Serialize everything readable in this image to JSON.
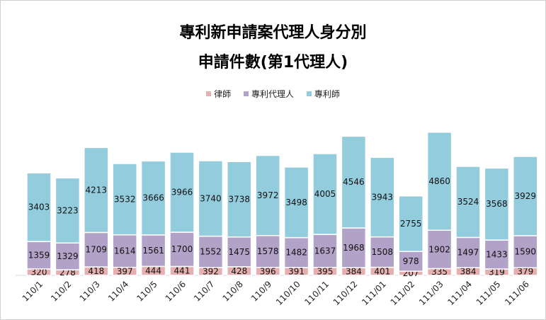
{
  "title_line1": "專利新申請案代理人身分別",
  "title_line2": "申請件數(第1代理人)",
  "colors": {
    "律師": "#e6b0b0",
    "專利代理人": "#b3a2c7",
    "專利師": "#93cddd"
  },
  "legend": [
    {
      "name": "律師",
      "color": "#e6b0b0"
    },
    {
      "name": "專利代理人",
      "color": "#b3a2c7"
    },
    {
      "name": "專利師",
      "color": "#93cddd"
    }
  ],
  "chart_data": {
    "type": "bar",
    "stacked": true,
    "title": "專利新申請案代理人身分別 申請件數(第1代理人)",
    "categories": [
      "110/1",
      "110/2",
      "110/3",
      "110/4",
      "110/5",
      "110/6",
      "110/7",
      "110/8",
      "110/9",
      "110/10",
      "110/11",
      "110/12",
      "111/01",
      "111/02",
      "111/03",
      "111/04",
      "111/05",
      "111/06"
    ],
    "series": [
      {
        "name": "律師",
        "values": [
          320,
          278,
          418,
          397,
          444,
          441,
          392,
          428,
          396,
          391,
          395,
          384,
          401,
          207,
          335,
          384,
          319,
          379
        ]
      },
      {
        "name": "專利代理人",
        "values": [
          1359,
          1329,
          1709,
          1614,
          1561,
          1700,
          1552,
          1475,
          1578,
          1482,
          1637,
          1968,
          1508,
          978,
          1902,
          1497,
          1433,
          1590
        ]
      },
      {
        "name": "專利師",
        "values": [
          3403,
          3223,
          4213,
          3532,
          3666,
          3966,
          3740,
          3738,
          3972,
          3498,
          4005,
          4546,
          3943,
          2755,
          4860,
          3524,
          3568,
          3929
        ]
      }
    ],
    "legend_position": "top",
    "grid": false
  }
}
